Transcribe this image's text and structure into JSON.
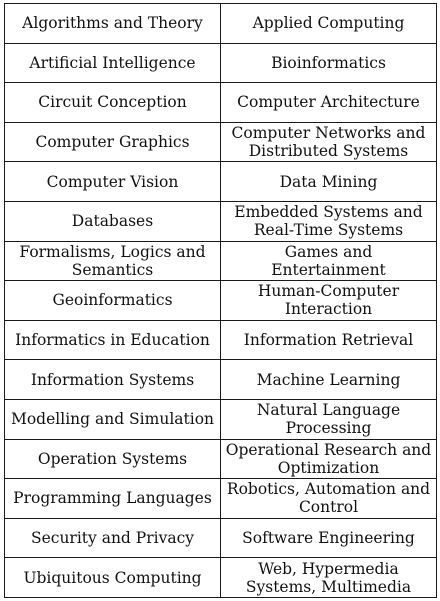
{
  "table": {
    "rows": [
      {
        "left": "Algorithms and Theory",
        "right": "Applied Computing"
      },
      {
        "left": "Artificial Intelligence",
        "right": "Bioinformatics"
      },
      {
        "left": "Circuit Conception",
        "right": "Computer Architecture"
      },
      {
        "left": "Computer Graphics",
        "right": "Computer Networks and Distributed Systems"
      },
      {
        "left": "Computer Vision",
        "right": "Data Mining"
      },
      {
        "left": "Databases",
        "right": "Embedded Systems and Real-Time Systems"
      },
      {
        "left": "Formalisms, Logics and Semantics",
        "right": "Games and Entertainment"
      },
      {
        "left": "Geoinformatics",
        "right": "Human-Computer Interaction"
      },
      {
        "left": "Informatics in Education",
        "right": "Information Retrieval"
      },
      {
        "left": "Information Systems",
        "right": "Machine Learning"
      },
      {
        "left": "Modelling and Simulation",
        "right": "Natural Language Processing"
      },
      {
        "left": "Operation Systems",
        "right": "Operational Research and Optimization"
      },
      {
        "left": "Programming Languages",
        "right": "Robotics, Automation and Control"
      },
      {
        "left": "Security and Privacy",
        "right": "Software Engineering"
      },
      {
        "left": "Ubiquitous Computing",
        "right": "Web, Hypermedia Systems, Multimedia"
      }
    ]
  }
}
